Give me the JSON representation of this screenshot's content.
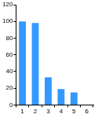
{
  "chart_data": {
    "type": "bar",
    "categories": [
      "1",
      "2",
      "3",
      "4",
      "5",
      "6"
    ],
    "values": [
      100,
      98,
      33,
      19,
      15,
      0
    ],
    "color": "#3399ff",
    "ylim": [
      0,
      120
    ],
    "yticks": [
      0,
      20,
      40,
      60,
      80,
      100,
      120
    ],
    "grid": false
  }
}
